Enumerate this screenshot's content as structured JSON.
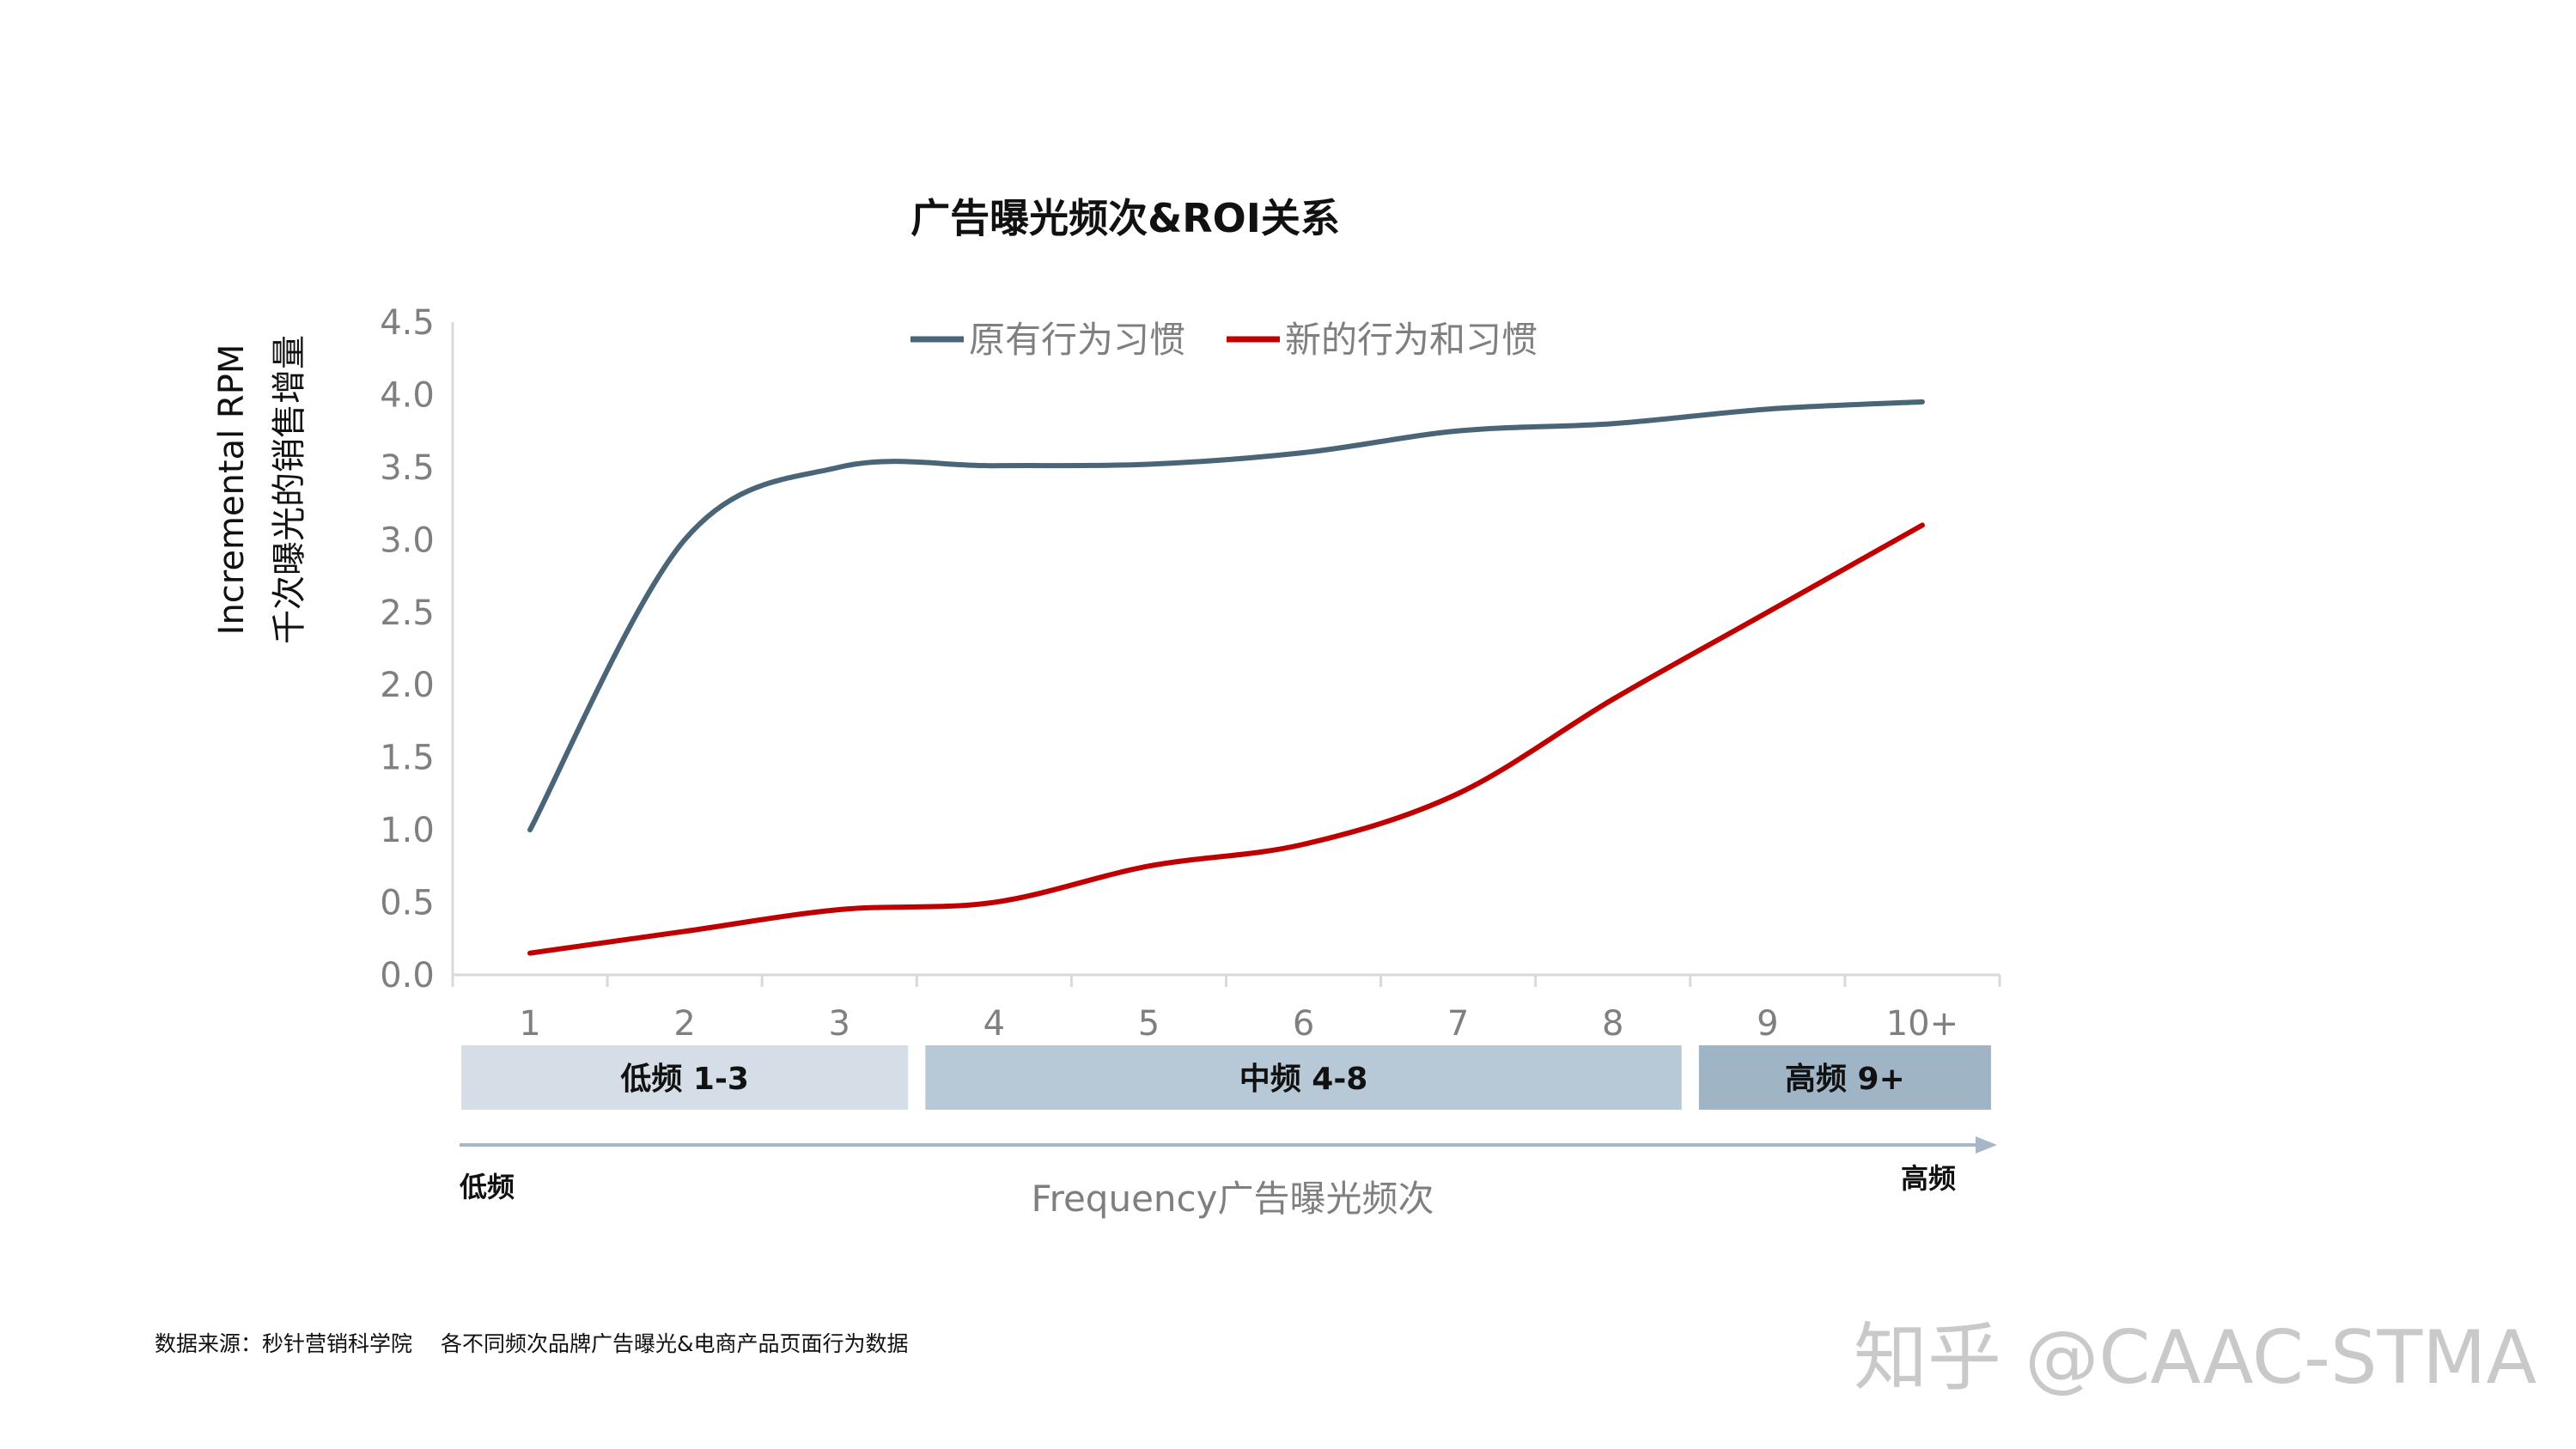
{
  "chart_data": {
    "type": "line",
    "title": "广告曝光频次&ROI关系",
    "ylabel_line1": "Incremental RPM",
    "ylabel_line2": "千次曝光的销售增量",
    "xlabel": "Frequency广告曝光频次",
    "categories": [
      "1",
      "2",
      "3",
      "4",
      "5",
      "6",
      "7",
      "8",
      "9",
      "10+"
    ],
    "ylim": [
      0,
      4.5
    ],
    "yticks": [
      "0.0",
      "0.5",
      "1.0",
      "1.5",
      "2.0",
      "2.5",
      "3.0",
      "3.5",
      "4.0",
      "4.5"
    ],
    "grid": false,
    "legend_position": "top-center",
    "series": [
      {
        "name": "原有行为习惯",
        "color": "#4a6478",
        "values": [
          1.0,
          3.0,
          3.5,
          3.51,
          3.52,
          3.6,
          3.75,
          3.8,
          3.9,
          3.95
        ]
      },
      {
        "name": "新的行为和习惯",
        "color": "#c00000",
        "values": [
          0.15,
          0.3,
          0.45,
          0.5,
          0.75,
          0.9,
          1.25,
          1.9,
          2.5,
          3.1
        ]
      }
    ],
    "bands": [
      {
        "label": "低频 1-3",
        "from": "1",
        "to": "3",
        "color": "#d5dee6"
      },
      {
        "label": "中频 4-8",
        "from": "4",
        "to": "8",
        "color": "#b7c8d6"
      },
      {
        "label": "高频 9+",
        "from": "9",
        "to": "10+",
        "color": "#9fb4c5"
      }
    ],
    "arrow_start_label": "低频",
    "arrow_end_label": "高频",
    "arrow_color": "#a6b8c7"
  },
  "footer": {
    "source": "数据来源：秒针营销科学院　 各不同频次品牌广告曝光&电商产品页面行为数据"
  },
  "watermark": "知乎 @CAAC-STMA"
}
